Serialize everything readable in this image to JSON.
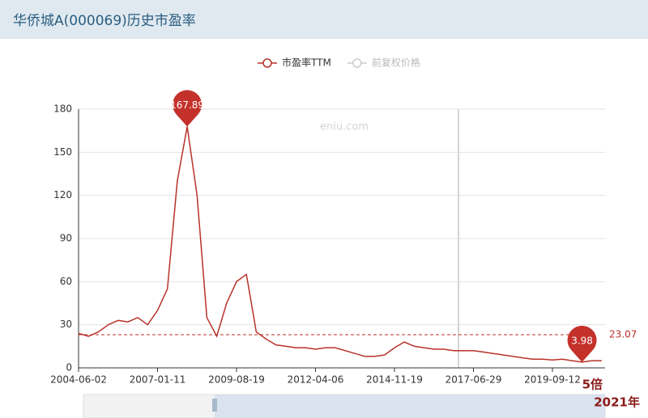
{
  "header": {
    "title": "华侨城A(000069)历史市盈率"
  },
  "chart_data": {
    "type": "line",
    "watermark": "eniu.com",
    "x": [
      "2004-06-02",
      null,
      null,
      null,
      null,
      null,
      null,
      null,
      "2007-01-11",
      null,
      null,
      null,
      null,
      null,
      null,
      null,
      "2009-08-19",
      null,
      null,
      null,
      null,
      null,
      null,
      null,
      "2012-04-06",
      null,
      null,
      null,
      null,
      null,
      null,
      null,
      "2014-11-19",
      null,
      null,
      null,
      null,
      null,
      null,
      null,
      "2017-06-29",
      null,
      null,
      null,
      null,
      null,
      null,
      null,
      "2019-09-12",
      null,
      null,
      null,
      null,
      null
    ],
    "series": [
      {
        "name": "市盈率TTM",
        "color": "#b8322a",
        "values": [
          24,
          22,
          25,
          30,
          33,
          32,
          35,
          30,
          40,
          55,
          130,
          167.89,
          120,
          35,
          22,
          45,
          60,
          65,
          25,
          20,
          16,
          15,
          14,
          14,
          13,
          14,
          14,
          12,
          10,
          8,
          8,
          9,
          14,
          18,
          15,
          14,
          13,
          13,
          12,
          12,
          12,
          11,
          10,
          9,
          8,
          7,
          6,
          6,
          5.5,
          6,
          5,
          3.98,
          5,
          5
        ]
      },
      {
        "name": "前复权价格",
        "color": "#cccccc",
        "hidden": true
      }
    ],
    "mark_line": {
      "value": 23.07
    },
    "ylim": [
      0,
      180
    ],
    "yticks": [
      0,
      30,
      60,
      90,
      120,
      150,
      180
    ],
    "grid": true,
    "annotations": [
      "5倍",
      "2021年"
    ]
  }
}
